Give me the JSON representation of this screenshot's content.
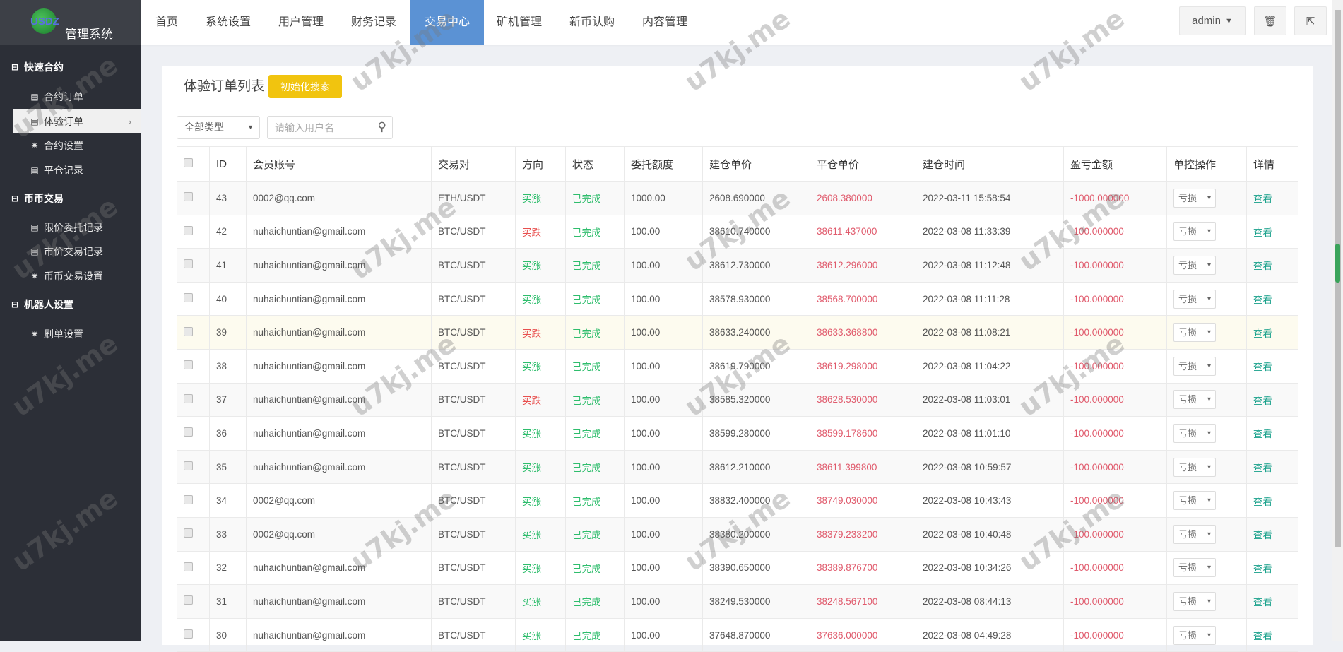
{
  "app": {
    "logo_text": "USDZ",
    "title": "管理系统"
  },
  "nav": [
    "首页",
    "系统设置",
    "用户管理",
    "财务记录",
    "交易中心",
    "矿机管理",
    "新币认购",
    "内容管理"
  ],
  "nav_active": 4,
  "top": {
    "user": "admin",
    "caret": "▼",
    "trash_icon": "trash-icon",
    "logout_icon": "logout-icon"
  },
  "sidebar": {
    "g1": "快速合约",
    "g1_items": [
      "合约订单",
      "体验订单",
      "合约设置",
      "平仓记录"
    ],
    "g2": "币币交易",
    "g2_items": [
      "限价委托记录",
      "市价交易记录",
      "币币交易设置"
    ],
    "g3": "机器人设置",
    "g3_items": [
      "刷单设置"
    ]
  },
  "page": {
    "title": "体验订单列表",
    "init_button": "初始化搜索",
    "type_select": "全部类型",
    "search_placeholder": "请输入用户名"
  },
  "table": {
    "headers": [
      "",
      "ID",
      "会员账号",
      "交易对",
      "方向",
      "状态",
      "委托额度",
      "建仓单价",
      "平仓单价",
      "建仓时间",
      "盈亏金额",
      "单控操作",
      "详情"
    ],
    "control_option": "亏损",
    "detail_label": "查看",
    "rows": [
      [
        "43",
        "0002@qq.com",
        "ETH/USDT",
        "买涨",
        "已完成",
        "1000.00",
        "2608.690000",
        "2608.380000",
        "2022-03-11 15:58:54",
        "-1000.000000"
      ],
      [
        "42",
        "nuhaichuntian@gmail.com",
        "BTC/USDT",
        "买跌",
        "已完成",
        "100.00",
        "38610.740000",
        "38611.437000",
        "2022-03-08 11:33:39",
        "-100.000000"
      ],
      [
        "41",
        "nuhaichuntian@gmail.com",
        "BTC/USDT",
        "买涨",
        "已完成",
        "100.00",
        "38612.730000",
        "38612.296000",
        "2022-03-08 11:12:48",
        "-100.000000"
      ],
      [
        "40",
        "nuhaichuntian@gmail.com",
        "BTC/USDT",
        "买涨",
        "已完成",
        "100.00",
        "38578.930000",
        "38568.700000",
        "2022-03-08 11:11:28",
        "-100.000000"
      ],
      [
        "39",
        "nuhaichuntian@gmail.com",
        "BTC/USDT",
        "买跌",
        "已完成",
        "100.00",
        "38633.240000",
        "38633.368800",
        "2022-03-08 11:08:21",
        "-100.000000"
      ],
      [
        "38",
        "nuhaichuntian@gmail.com",
        "BTC/USDT",
        "买涨",
        "已完成",
        "100.00",
        "38619.790000",
        "38619.298000",
        "2022-03-08 11:04:22",
        "-100.000000"
      ],
      [
        "37",
        "nuhaichuntian@gmail.com",
        "BTC/USDT",
        "买跌",
        "已完成",
        "100.00",
        "38585.320000",
        "38628.530000",
        "2022-03-08 11:03:01",
        "-100.000000"
      ],
      [
        "36",
        "nuhaichuntian@gmail.com",
        "BTC/USDT",
        "买涨",
        "已完成",
        "100.00",
        "38599.280000",
        "38599.178600",
        "2022-03-08 11:01:10",
        "-100.000000"
      ],
      [
        "35",
        "nuhaichuntian@gmail.com",
        "BTC/USDT",
        "买涨",
        "已完成",
        "100.00",
        "38612.210000",
        "38611.399800",
        "2022-03-08 10:59:57",
        "-100.000000"
      ],
      [
        "34",
        "0002@qq.com",
        "BTC/USDT",
        "买涨",
        "已完成",
        "100.00",
        "38832.400000",
        "38749.030000",
        "2022-03-08 10:43:43",
        "-100.000000"
      ],
      [
        "33",
        "0002@qq.com",
        "BTC/USDT",
        "买涨",
        "已完成",
        "100.00",
        "38380.200000",
        "38379.233200",
        "2022-03-08 10:40:48",
        "-100.000000"
      ],
      [
        "32",
        "nuhaichuntian@gmail.com",
        "BTC/USDT",
        "买涨",
        "已完成",
        "100.00",
        "38390.650000",
        "38389.876700",
        "2022-03-08 10:34:26",
        "-100.000000"
      ],
      [
        "31",
        "nuhaichuntian@gmail.com",
        "BTC/USDT",
        "买涨",
        "已完成",
        "100.00",
        "38249.530000",
        "38248.567100",
        "2022-03-08 08:44:13",
        "-100.000000"
      ],
      [
        "30",
        "nuhaichuntian@gmail.com",
        "BTC/USDT",
        "买涨",
        "已完成",
        "100.00",
        "37648.870000",
        "37636.000000",
        "2022-03-08 04:49:28",
        "-100.000000"
      ]
    ]
  },
  "watermark": "u7kj.me",
  "colors": {
    "accent": "#5b92d4",
    "button": "#f1c40f",
    "up": "#2ebd6c",
    "down": "#e8504f",
    "loss": "#e05a6c",
    "link": "#17a08a"
  }
}
